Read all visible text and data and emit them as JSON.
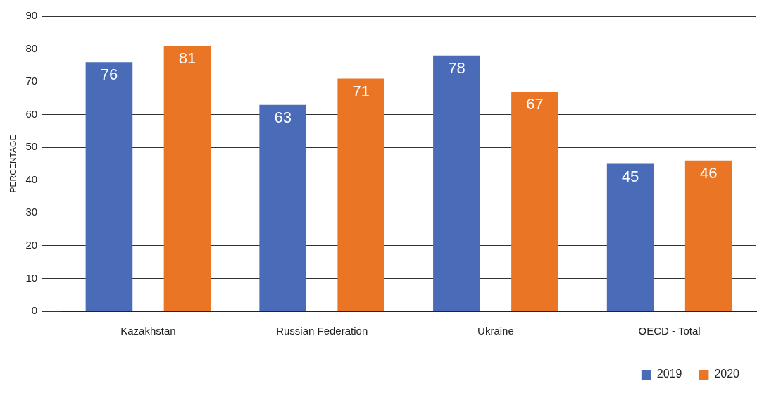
{
  "chart_data": {
    "type": "bar",
    "ylabel": "PERCENTAGE",
    "categories": [
      "Kazakhstan",
      "Russian Federation",
      "Ukraine",
      "OECD - Total"
    ],
    "series": [
      {
        "name": "2019",
        "color": "#4a6cb8",
        "values": [
          76,
          63,
          78,
          45
        ]
      },
      {
        "name": "2020",
        "color": "#ea7625",
        "values": [
          81,
          71,
          67,
          46
        ]
      }
    ],
    "ylim": [
      0,
      90
    ],
    "yticks": [
      0,
      10,
      20,
      30,
      40,
      50,
      60,
      70,
      80,
      90
    ],
    "grid": "y",
    "legend": "bottom right",
    "data_labels": true
  }
}
